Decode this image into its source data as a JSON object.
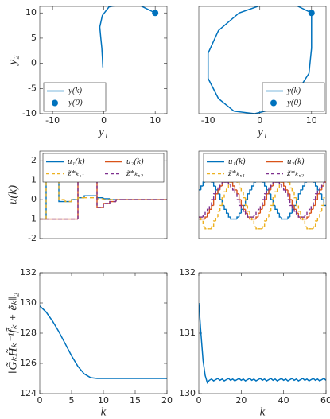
{
  "chart_data": [
    {
      "type": "line",
      "xlabel": "y₁",
      "ylabel": "y₂",
      "xlim": [
        -12.5,
        12.3
      ],
      "ylim": [
        -10,
        11.3
      ],
      "xticks": [
        -10,
        0,
        10
      ],
      "yticks": [
        -10,
        -5,
        0,
        5,
        10
      ],
      "legend": "lower left",
      "series": [
        {
          "name": "y(k)",
          "color": "#0072BD",
          "x": [
            10,
            7,
            4,
            1,
            -0.3,
            -0.8,
            -0.6,
            -0.4,
            -0.3,
            -0.2
          ],
          "values": [
            10,
            11.5,
            11.8,
            11.2,
            9.5,
            7.2,
            5,
            3,
            1.2,
            -0.8
          ]
        },
        {
          "name": "y(0)",
          "color": "#0072BD",
          "marker": "dot",
          "x": [
            10
          ],
          "values": [
            10
          ]
        }
      ]
    },
    {
      "type": "line",
      "xlabel": "y₁",
      "xlim": [
        -11.8,
        12.8
      ],
      "ylim": [
        -10,
        11.3
      ],
      "xticks": [
        -10,
        0,
        10
      ],
      "legend": "lower right",
      "series": [
        {
          "name": "y(k)",
          "color": "#0072BD",
          "x": [
            10,
            6,
            1,
            -4,
            -8,
            -10,
            -10,
            -8,
            -5,
            -1,
            3,
            7,
            9.5,
            10,
            10,
            10
          ],
          "values": [
            10,
            12,
            11.8,
            10,
            6.5,
            2,
            -3,
            -7,
            -9.5,
            -10,
            -9,
            -6,
            -2,
            3,
            7,
            10
          ]
        },
        {
          "name": "y(0)",
          "color": "#0072BD",
          "marker": "dot",
          "x": [
            10
          ],
          "values": [
            10
          ]
        }
      ]
    },
    {
      "type": "line",
      "step": true,
      "ylabel": "u(k)",
      "xlim": [
        0,
        20
      ],
      "ylim": [
        -2,
        2.5
      ],
      "yticks": [
        -2,
        -1,
        0,
        1,
        2
      ],
      "legend": "upper",
      "legend_columns": 2,
      "x": [
        0,
        1,
        2,
        3,
        4,
        5,
        6,
        7,
        8,
        9,
        10,
        11,
        12,
        13,
        14,
        15,
        16,
        17,
        18,
        19
      ],
      "series": [
        {
          "name": "u₁(k)",
          "color": "#0072BD",
          "values": [
            -1,
            1,
            1,
            -0.1,
            -0.1,
            0,
            0.1,
            0.2,
            0.2,
            0.1,
            0.05,
            0,
            0,
            0,
            0,
            0,
            0,
            0,
            0,
            0
          ]
        },
        {
          "name": "u₂(k)",
          "color": "#D95319",
          "values": [
            -1,
            -1,
            -1,
            -1,
            -1,
            -1,
            1,
            1,
            1,
            -0.4,
            -0.2,
            -0.1,
            0,
            0,
            0,
            0,
            0,
            0,
            0,
            0
          ]
        },
        {
          "name": "z̃*ₖ,₁",
          "color": "#EDB120",
          "dashed": true,
          "values": [
            -1,
            1,
            1,
            0,
            -0.1,
            0,
            0.1,
            0.1,
            0.1,
            0.05,
            0,
            0,
            0,
            0,
            0,
            0,
            0,
            0,
            0,
            0
          ]
        },
        {
          "name": "z̃*ₖ,₂",
          "color": "#7E2F8E",
          "dashed": true,
          "values": [
            -1,
            -1,
            -1,
            -1,
            -1,
            -1,
            1,
            1,
            1,
            -0.4,
            -0.2,
            -0.1,
            0,
            0,
            0,
            0,
            0,
            0,
            0,
            0
          ]
        }
      ]
    },
    {
      "type": "line",
      "step": true,
      "xlim": [
        0,
        60
      ],
      "ylim": [
        -2,
        2.5
      ],
      "legend": "upper right",
      "legend_columns": 2,
      "x": [
        0,
        1,
        2,
        3,
        4,
        5,
        6,
        7,
        8,
        9,
        10,
        11,
        12,
        13,
        14,
        15,
        16,
        17,
        18,
        19,
        20,
        21,
        22,
        23,
        24,
        25,
        26,
        27,
        28,
        29,
        30,
        31,
        32,
        33,
        34,
        35,
        36,
        37,
        38,
        39,
        40,
        41,
        42,
        43,
        44,
        45,
        46,
        47,
        48,
        49,
        50,
        51,
        52,
        53,
        54,
        55,
        56,
        57,
        58,
        59
      ],
      "series": [
        {
          "name": "u₁(k)",
          "color": "#0072BD",
          "values": [
            0.5,
            0.7,
            0.9,
            1,
            1,
            1,
            0.9,
            0.7,
            0.5,
            0.3,
            0,
            -0.3,
            -0.5,
            -0.7,
            -0.9,
            -1,
            -1,
            -1,
            -0.9,
            -0.7,
            -0.5,
            -0.3,
            0,
            0.3,
            0.5,
            0.7,
            0.9,
            1,
            1,
            1,
            0.9,
            0.7,
            0.5,
            0.3,
            0,
            -0.3,
            -0.5,
            -0.7,
            -0.9,
            -1,
            -1,
            -1,
            -0.9,
            -0.7,
            -0.5,
            -0.3,
            0,
            0.3,
            0.5,
            0.7,
            0.9,
            1,
            1,
            1,
            0.9,
            0.7,
            0.5,
            0.3,
            0,
            -0.3
          ]
        },
        {
          "name": "u₂(k)",
          "color": "#D95319",
          "values": [
            -1,
            -1,
            -1,
            -0.9,
            -0.7,
            -0.5,
            -0.3,
            0,
            0.3,
            0.5,
            0.7,
            0.9,
            1,
            1,
            1,
            0.9,
            0.7,
            0.5,
            0.3,
            0,
            -0.3,
            -0.5,
            -0.7,
            -0.9,
            -1,
            -1,
            -1,
            -0.9,
            -0.7,
            -0.5,
            -0.3,
            0,
            0.3,
            0.5,
            0.7,
            0.9,
            1,
            1,
            1,
            0.9,
            0.7,
            0.5,
            0.3,
            0,
            -0.3,
            -0.5,
            -0.7,
            -0.9,
            -1,
            -1,
            -1,
            -0.9,
            -0.7,
            -0.5,
            -0.3,
            0,
            0.3,
            0.5,
            0.7,
            0.9
          ]
        },
        {
          "name": "z̃*ₖ,₁",
          "color": "#EDB120",
          "dashed": true,
          "values": [
            -0.9,
            -1.1,
            -1.4,
            -1.5,
            -1.5,
            -1.5,
            -1.4,
            -1.1,
            -0.9,
            -0.6,
            -0.3,
            0.1,
            0.4,
            0.6,
            0.9,
            1,
            1,
            1,
            0.9,
            0.6,
            0.4,
            0.1,
            -0.3,
            -0.6,
            -0.9,
            -1.1,
            -1.4,
            -1.5,
            -1.5,
            -1.5,
            -1.4,
            -1.1,
            -0.9,
            -0.6,
            -0.3,
            0.1,
            0.4,
            0.6,
            0.9,
            1,
            1,
            1,
            0.9,
            0.6,
            0.4,
            0.1,
            -0.3,
            -0.6,
            -0.9,
            -1.1,
            -1.4,
            -1.5,
            -1.5,
            -1.5,
            -1.4,
            -1.1,
            -0.9,
            -0.6,
            -0.3,
            0.1
          ]
        },
        {
          "name": "z̃*ₖ,₂",
          "color": "#7E2F8E",
          "dashed": true,
          "values": [
            -0.9,
            -0.9,
            -0.8,
            -0.6,
            -0.5,
            -0.3,
            0,
            0.3,
            0.5,
            0.6,
            0.8,
            0.9,
            0.9,
            0.9,
            0.8,
            0.6,
            0.5,
            0.3,
            0,
            -0.3,
            -0.5,
            -0.6,
            -0.8,
            -0.9,
            -0.9,
            -0.9,
            -0.8,
            -0.6,
            -0.5,
            -0.3,
            0,
            0.3,
            0.5,
            0.6,
            0.8,
            0.9,
            0.9,
            0.9,
            0.8,
            0.6,
            0.5,
            0.3,
            0,
            -0.3,
            -0.5,
            -0.6,
            -0.8,
            -0.9,
            -0.9,
            -0.9,
            -0.8,
            -0.6,
            -0.5,
            -0.3,
            0,
            0.3,
            0.5,
            0.6,
            0.8,
            0.9
          ]
        }
      ]
    },
    {
      "type": "line",
      "xlabel": "k",
      "ylabel": "‖G̃ₖH̃ₖ⁻¹f̃ₖ + ẽₖ‖₂",
      "xlim": [
        0,
        20
      ],
      "ylim": [
        124,
        132
      ],
      "xticks": [
        0,
        5,
        10,
        15,
        20
      ],
      "yticks": [
        124,
        126,
        128,
        130,
        132
      ],
      "x": [
        0,
        1,
        2,
        3,
        4,
        5,
        6,
        7,
        8,
        9,
        10,
        11,
        12,
        13,
        14,
        15,
        16,
        17,
        18,
        19,
        20
      ],
      "series": [
        {
          "color": "#0072BD",
          "values": [
            129.8,
            129.4,
            128.8,
            128.1,
            127.3,
            126.5,
            125.8,
            125.3,
            125.05,
            125.0,
            125.0,
            125.0,
            125.0,
            125.0,
            125.0,
            125.0,
            125.0,
            125.0,
            125.0,
            125.0,
            125.0
          ]
        }
      ]
    },
    {
      "type": "line",
      "xlabel": "k",
      "xlim": [
        0,
        60
      ],
      "ylim": [
        130,
        132
      ],
      "xticks": [
        0,
        20,
        40,
        60
      ],
      "yticks": [
        130,
        131,
        132
      ],
      "x": [
        0,
        1,
        2,
        3,
        4,
        5,
        6,
        7,
        8,
        9,
        10,
        11,
        12,
        13,
        14,
        15,
        16,
        17,
        18,
        19,
        20,
        21,
        22,
        23,
        24,
        25,
        26,
        27,
        28,
        29,
        30,
        31,
        32,
        33,
        34,
        35,
        36,
        37,
        38,
        39,
        40,
        41,
        42,
        43,
        44,
        45,
        46,
        47,
        48,
        49,
        50,
        51,
        52,
        53,
        54,
        55,
        56,
        57,
        58,
        59,
        60
      ],
      "series": [
        {
          "color": "#0072BD",
          "values": [
            131.5,
            131.0,
            130.55,
            130.3,
            130.18,
            130.22,
            130.24,
            130.21,
            130.23,
            130.25,
            130.22,
            130.24,
            130.21,
            130.23,
            130.25,
            130.22,
            130.24,
            130.21,
            130.23,
            130.25,
            130.22,
            130.24,
            130.21,
            130.23,
            130.25,
            130.22,
            130.24,
            130.21,
            130.23,
            130.25,
            130.22,
            130.24,
            130.21,
            130.23,
            130.25,
            130.22,
            130.24,
            130.21,
            130.23,
            130.25,
            130.22,
            130.24,
            130.21,
            130.23,
            130.25,
            130.22,
            130.24,
            130.21,
            130.23,
            130.25,
            130.22,
            130.24,
            130.21,
            130.23,
            130.25,
            130.22,
            130.24,
            130.21,
            130.23,
            130.25,
            130.22
          ]
        }
      ]
    }
  ]
}
